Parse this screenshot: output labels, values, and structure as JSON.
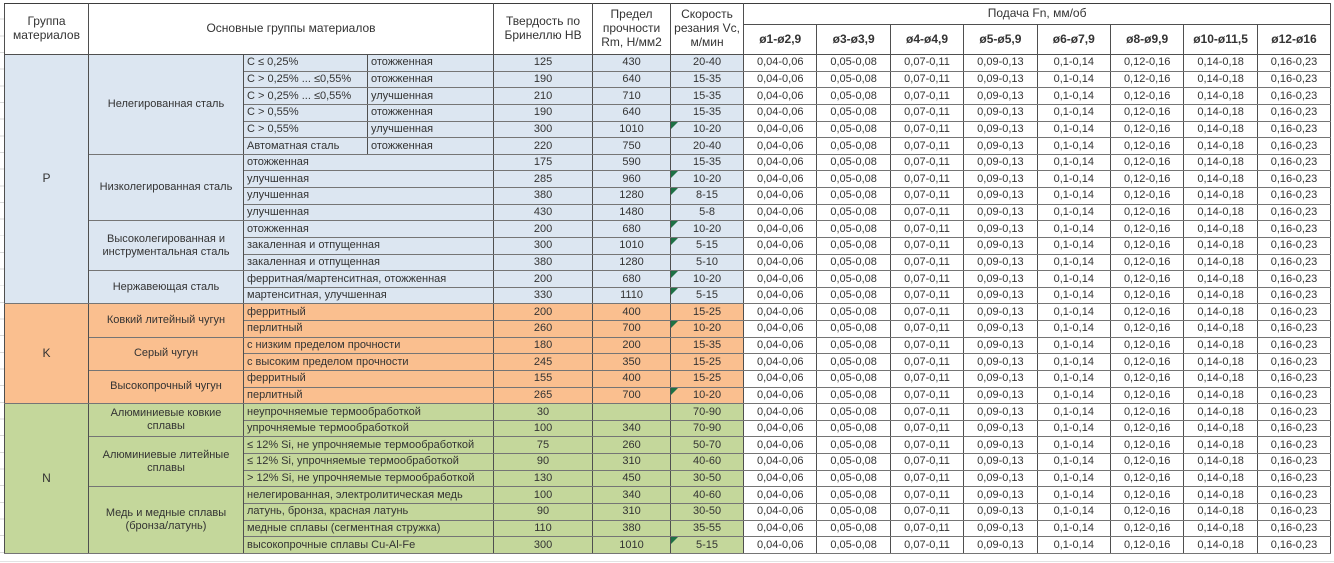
{
  "header": {
    "col_group": "Группа материалов",
    "col_main": "Основные группы материалов",
    "col_hb": "Твердость по Бринеллю HB",
    "col_rm": "Предел прочности Rm, Н/мм2",
    "col_vc": "Скорость резания Vc, м/мин",
    "feed_title": "Подача Fn, мм/об",
    "diameters": [
      "ø1-ø2,9",
      "ø3-ø3,9",
      "ø4-ø4,9",
      "ø5-ø5,9",
      "ø6-ø7,9",
      "ø8-ø9,9",
      "ø10-ø11,5",
      "ø12-ø16"
    ]
  },
  "feed_values": [
    "0,04-0,06",
    "0,05-0,08",
    "0,07-0,11",
    "0,09-0,13",
    "0,1-0,14",
    "0,12-0,16",
    "0,14-0,18",
    "0,16-0,23"
  ],
  "colors": {
    "group_p_fill": "#dce6f1",
    "group_k_fill": "#fabf8f",
    "group_n_fill": "#c4d79b",
    "comment_flag": "#1e7145",
    "border": "#4f4f4f",
    "text": "#333333"
  },
  "groups": [
    {
      "code": "P",
      "color": "p",
      "families": [
        {
          "name": "Нелегированная сталь",
          "rows": [
            {
              "variant": "C ≤ 0,25%",
              "state": "отожженная",
              "hb": "125",
              "rm": "430",
              "vc": "20-40",
              "flag": false
            },
            {
              "variant": "C > 0,25% ... ≤0,55%",
              "state": "отожженная",
              "hb": "190",
              "rm": "640",
              "vc": "15-35",
              "flag": false
            },
            {
              "variant": "C > 0,25% ... ≤0,55%",
              "state": "улучшенная",
              "hb": "210",
              "rm": "710",
              "vc": "15-35",
              "flag": false
            },
            {
              "variant": "C > 0,55%",
              "state": "отожженная",
              "hb": "190",
              "rm": "640",
              "vc": "15-35",
              "flag": false
            },
            {
              "variant": "C > 0,55%",
              "state": "улучшенная",
              "hb": "300",
              "rm": "1010",
              "vc": "10-20",
              "flag": true
            },
            {
              "variant": "Автоматная сталь",
              "state": "отожженная",
              "hb": "220",
              "rm": "750",
              "vc": "20-40",
              "flag": false
            }
          ]
        },
        {
          "name": "Низколегированная сталь",
          "rows": [
            {
              "variant": "отожженная",
              "hb": "175",
              "rm": "590",
              "vc": "15-35",
              "flag": false
            },
            {
              "variant": "улучшенная",
              "hb": "285",
              "rm": "960",
              "vc": "10-20",
              "flag": true
            },
            {
              "variant": "улучшенная",
              "hb": "380",
              "rm": "1280",
              "vc": "8-15",
              "flag": true
            },
            {
              "variant": "улучшенная",
              "hb": "430",
              "rm": "1480",
              "vc": "5-8",
              "flag": false
            }
          ]
        },
        {
          "name": "Высоколегированная и инструментальная сталь",
          "rows": [
            {
              "variant": "отожженная",
              "hb": "200",
              "rm": "680",
              "vc": "10-20",
              "flag": true
            },
            {
              "variant": "закаленная и отпущенная",
              "hb": "300",
              "rm": "1010",
              "vc": "5-15",
              "flag": true
            },
            {
              "variant": "закаленная и отпущенная",
              "hb": "380",
              "rm": "1280",
              "vc": "5-10",
              "flag": false
            }
          ]
        },
        {
          "name": "Нержавеющая сталь",
          "rows": [
            {
              "variant": "ферритная/мартенситная, отожженная",
              "hb": "200",
              "rm": "680",
              "vc": "10-20",
              "flag": true
            },
            {
              "variant": "мартенситная, улучшенная",
              "hb": "330",
              "rm": "1110",
              "vc": "5-15",
              "flag": true
            }
          ]
        }
      ]
    },
    {
      "code": "K",
      "color": "k",
      "families": [
        {
          "name": "Ковкий литейный чугун",
          "rows": [
            {
              "variant": "ферритный",
              "hb": "200",
              "rm": "400",
              "vc": "15-25",
              "flag": false
            },
            {
              "variant": "перлитный",
              "hb": "260",
              "rm": "700",
              "vc": "10-20",
              "flag": true
            }
          ]
        },
        {
          "name": "Серый чугун",
          "rows": [
            {
              "variant": "с низким пределом прочности",
              "hb": "180",
              "rm": "200",
              "vc": "15-35",
              "flag": false
            },
            {
              "variant": "с высоким пределом прочности",
              "hb": "245",
              "rm": "350",
              "vc": "15-25",
              "flag": false
            }
          ]
        },
        {
          "name": "Высокопрочный чугун",
          "rows": [
            {
              "variant": "ферритный",
              "hb": "155",
              "rm": "400",
              "vc": "15-25",
              "flag": false
            },
            {
              "variant": "перлитный",
              "hb": "265",
              "rm": "700",
              "vc": "10-20",
              "flag": true
            }
          ]
        }
      ]
    },
    {
      "code": "N",
      "color": "n",
      "families": [
        {
          "name": "Алюминиевые ковкие сплавы",
          "rows": [
            {
              "variant": "неупрочняемые термообработкой",
              "hb": "30",
              "rm": "",
              "vc": "70-90",
              "flag": false
            },
            {
              "variant": "упрочняемые термообработкой",
              "hb": "100",
              "rm": "340",
              "vc": "70-90",
              "flag": false
            }
          ]
        },
        {
          "name": "Алюминиевые литейные сплавы",
          "rows": [
            {
              "variant": "≤ 12% Si, не упрочняемые термообработкой",
              "hb": "75",
              "rm": "260",
              "vc": "50-70",
              "flag": false
            },
            {
              "variant": "≤ 12% Si, упрочняемые термообработкой",
              "hb": "90",
              "rm": "310",
              "vc": "40-60",
              "flag": false
            },
            {
              "variant": "> 12% Si, не упрочняемые термообработкой",
              "hb": "130",
              "rm": "450",
              "vc": "30-50",
              "flag": false
            }
          ]
        },
        {
          "name": "Медь и медные сплавы (бронза/латунь)",
          "rows": [
            {
              "variant": "нелегированная, электролитическая медь",
              "hb": "100",
              "rm": "340",
              "vc": "40-60",
              "flag": false
            },
            {
              "variant": "латунь, бронза, красная латунь",
              "hb": "90",
              "rm": "310",
              "vc": "30-50",
              "flag": false
            },
            {
              "variant": "медные сплавы (сегментная стружка)",
              "hb": "110",
              "rm": "380",
              "vc": "35-55",
              "flag": false
            },
            {
              "variant": "высокопрочные сплавы Cu-Al-Fe",
              "hb": "300",
              "rm": "1010",
              "vc": "5-15",
              "flag": true
            }
          ]
        }
      ]
    }
  ]
}
